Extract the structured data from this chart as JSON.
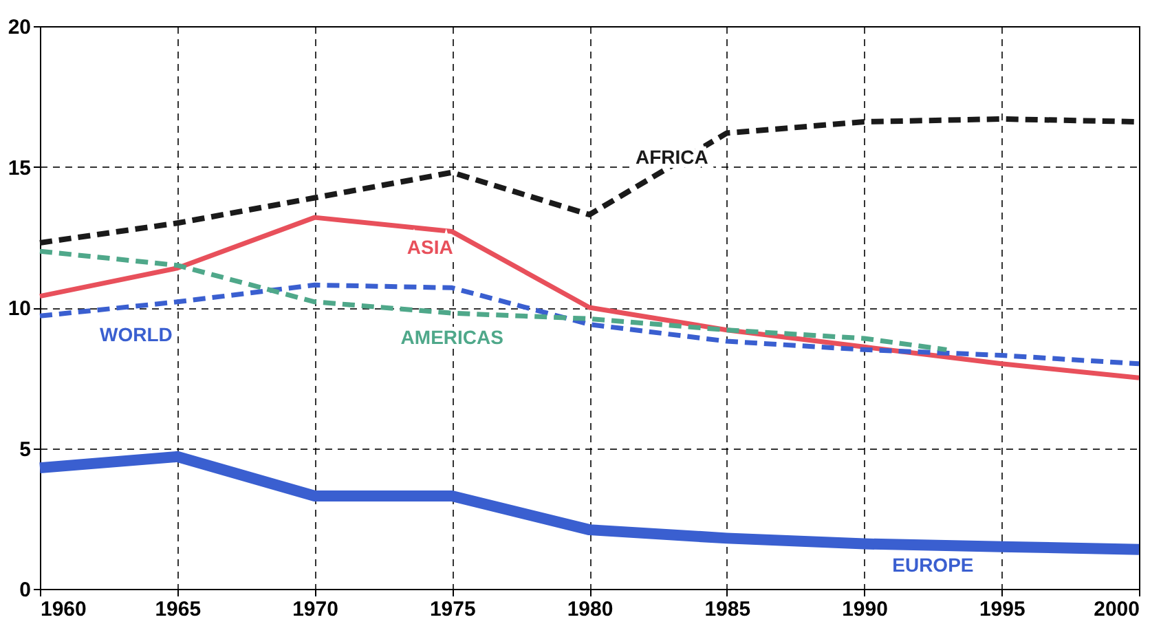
{
  "chart_data": {
    "type": "line",
    "x": [
      1960,
      1965,
      1970,
      1975,
      1980,
      1985,
      1990,
      1995,
      2000
    ],
    "xlim": [
      1960,
      2000
    ],
    "xticks": [
      1960,
      1965,
      1970,
      1975,
      1980,
      1985,
      1990,
      1995,
      2000
    ],
    "ylim": [
      0,
      20
    ],
    "yticks": [
      0,
      5,
      10,
      15,
      20
    ],
    "grid": true,
    "series": [
      {
        "name": "AFRICA",
        "color": "#1a1a1a",
        "line_style": "dashed",
        "values": [
          12.3,
          13.0,
          13.9,
          14.8,
          13.3,
          16.2,
          16.6,
          16.7,
          16.6
        ]
      },
      {
        "name": "ASIA",
        "color": "#e8505b",
        "line_style": "solid",
        "values": [
          10.4,
          11.4,
          13.2,
          12.7,
          10.0,
          9.2,
          8.6,
          8.0,
          7.5
        ]
      },
      {
        "name": "WORLD",
        "color": "#3a5fd0",
        "line_style": "dashed",
        "values": [
          9.7,
          10.2,
          10.8,
          10.7,
          9.4,
          8.8,
          8.5,
          8.3,
          8.0
        ]
      },
      {
        "name": "AMERICAS",
        "color": "#4fa88a",
        "line_style": "dashed",
        "x": [
          1960,
          1965,
          1970,
          1975,
          1980,
          1985,
          1990,
          1993
        ],
        "values": [
          12.0,
          11.5,
          10.2,
          9.8,
          9.6,
          9.2,
          8.9,
          8.5
        ]
      },
      {
        "name": "EUROPE",
        "color": "#3a5fd0",
        "line_style": "solid",
        "values": [
          4.3,
          4.7,
          3.3,
          3.3,
          2.1,
          1.8,
          1.6,
          1.5,
          1.4
        ]
      }
    ]
  }
}
